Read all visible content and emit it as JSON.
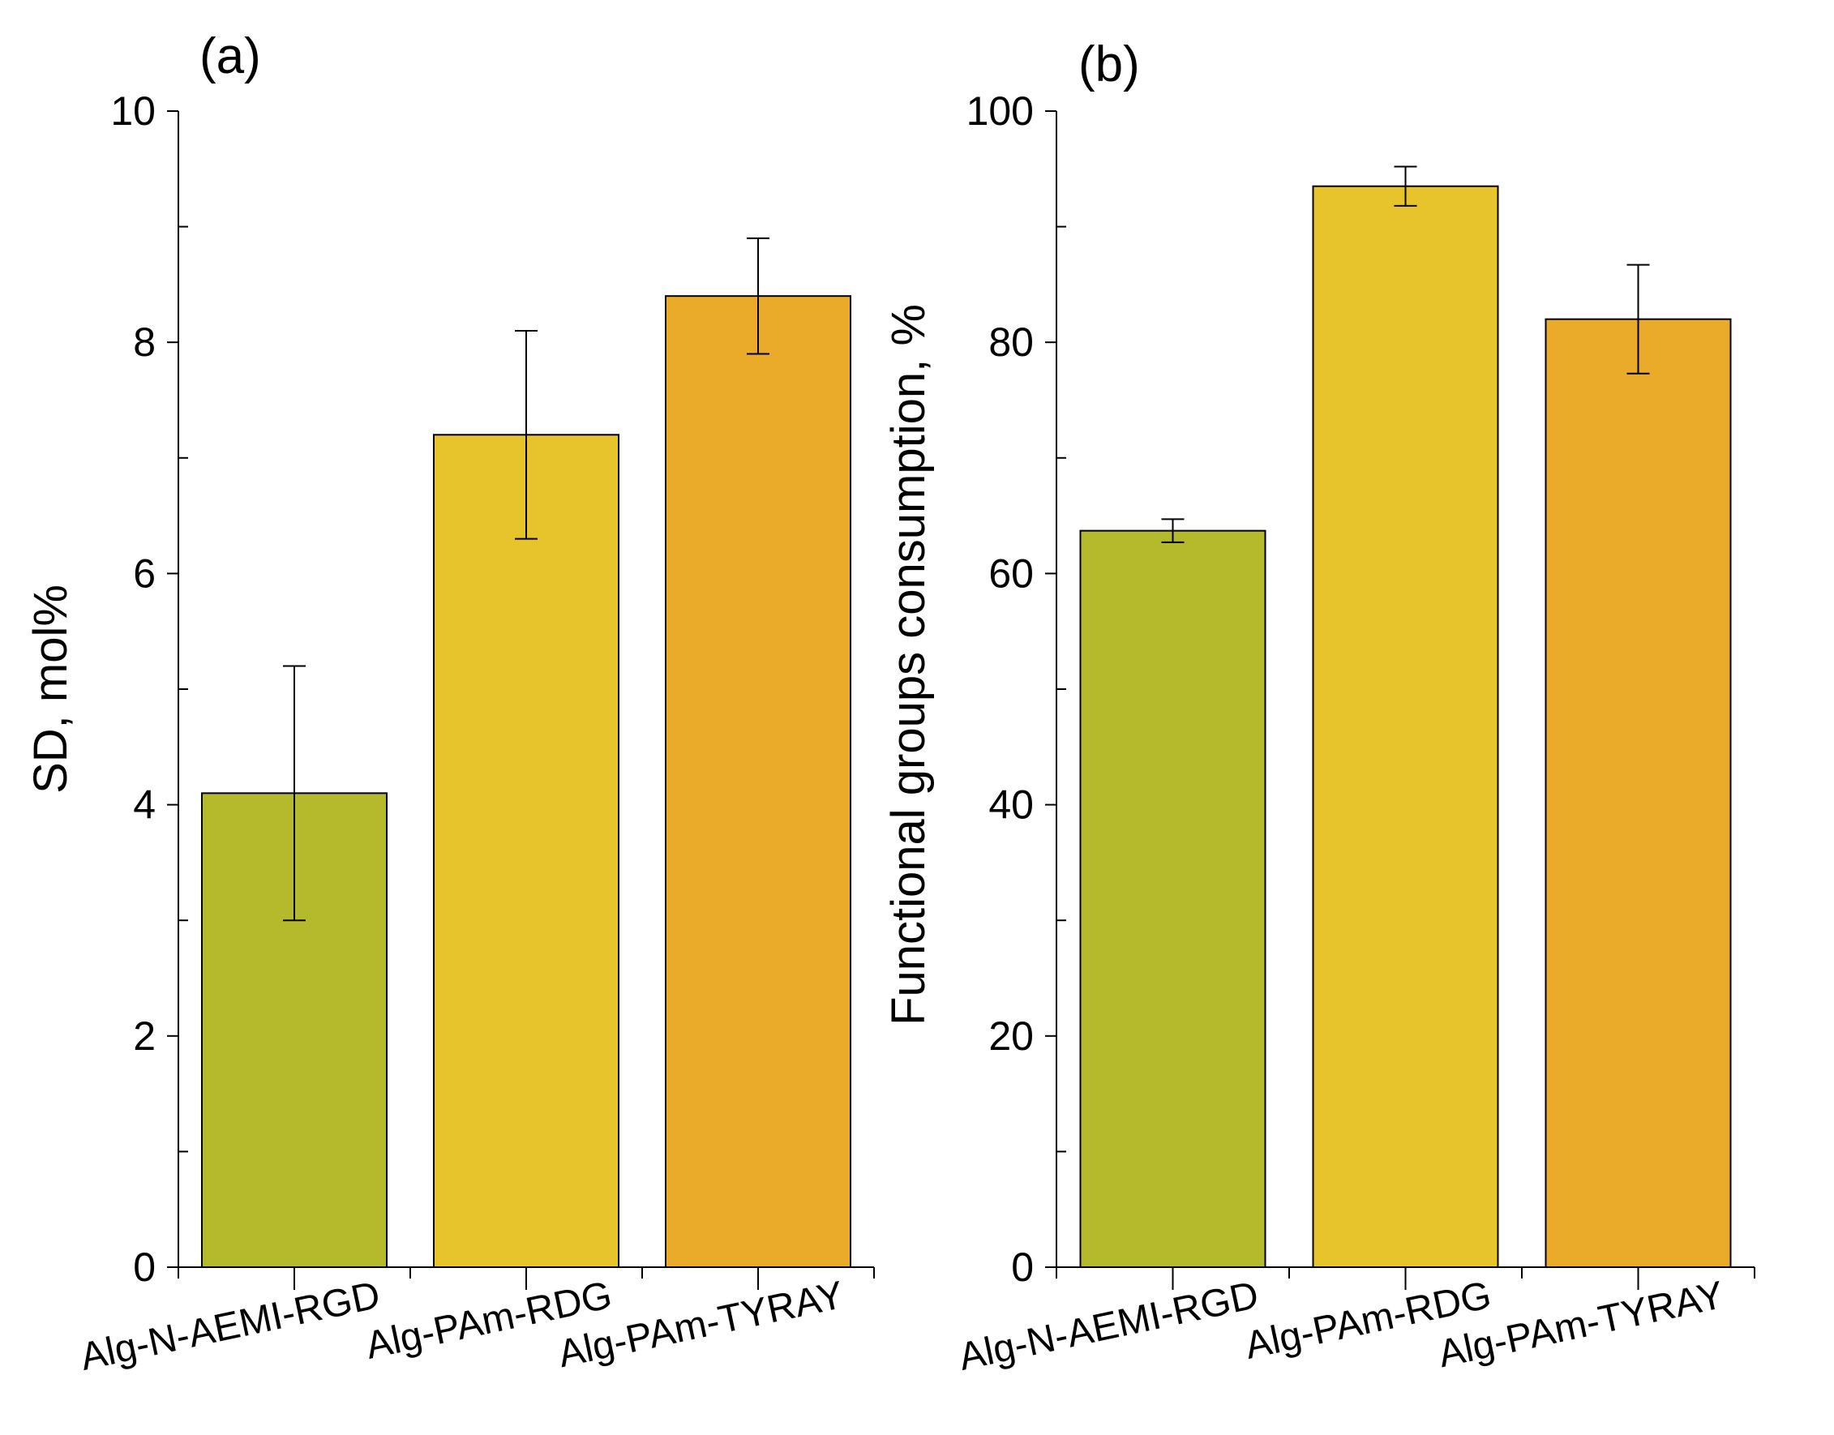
{
  "chart_data": [
    {
      "type": "bar",
      "panel_label": "(a)",
      "ylabel": "SD, mol%",
      "xlabel": "",
      "ylim": [
        0,
        10
      ],
      "yticks": [
        0,
        2,
        4,
        6,
        8,
        10
      ],
      "yminor": [
        1,
        3,
        5,
        7,
        9
      ],
      "categories": [
        "Alg-N-AEMI-RGD",
        "Alg-PAm-RDG",
        "Alg-PAm-TYRAY"
      ],
      "values": [
        4.1,
        7.2,
        8.4
      ],
      "errors": [
        1.1,
        0.9,
        0.5
      ],
      "colors": [
        "#b5ba2c",
        "#e8c42c",
        "#eaab2a"
      ]
    },
    {
      "type": "bar",
      "panel_label": "(b)",
      "ylabel": "Functional groups consumption, %",
      "xlabel": "",
      "ylim": [
        0,
        100
      ],
      "yticks": [
        0,
        20,
        40,
        60,
        80,
        100
      ],
      "yminor": [
        10,
        30,
        50,
        70,
        90
      ],
      "categories": [
        "Alg-N-AEMI-RGD",
        "Alg-PAm-RDG",
        "Alg-PAm-TYRAY"
      ],
      "values": [
        63.7,
        93.5,
        82.0
      ],
      "errors": [
        1.0,
        1.7,
        4.7
      ],
      "colors": [
        "#b5ba2c",
        "#e8c42c",
        "#eaab2a"
      ]
    }
  ]
}
